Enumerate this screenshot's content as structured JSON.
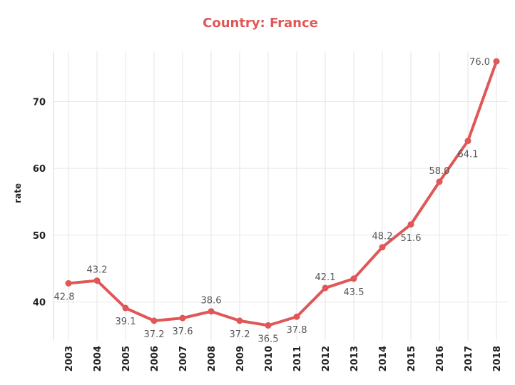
{
  "chart_data": {
    "type": "line",
    "title": "Country:  France",
    "xlabel": "",
    "ylabel": "rate",
    "x": [
      "2003",
      "2004",
      "2005",
      "2006",
      "2007",
      "2008",
      "2009",
      "2010",
      "2011",
      "2012",
      "2013",
      "2014",
      "2015",
      "2016",
      "2017",
      "2018"
    ],
    "values": [
      42.8,
      43.2,
      39.1,
      37.2,
      37.6,
      38.6,
      37.2,
      36.5,
      37.8,
      42.1,
      43.5,
      48.2,
      51.6,
      58.0,
      64.1,
      76.0
    ],
    "labels": [
      "42.8",
      "43.2",
      "39.1",
      "37.2",
      "37.6",
      "38.6",
      "37.2",
      "36.5",
      "37.8",
      "42.1",
      "43.5",
      "48.2",
      "51.6",
      "58.0",
      "64.1",
      "76.0"
    ],
    "label_positions": [
      "below",
      "above",
      "below",
      "below",
      "below",
      "above",
      "below",
      "below",
      "below",
      "above",
      "below",
      "above",
      "below",
      "above",
      "below",
      "left"
    ],
    "yticks": [
      40,
      50,
      60,
      70
    ],
    "ylim": [
      34.2,
      77.5
    ],
    "grid": true,
    "color": "#e05757"
  }
}
